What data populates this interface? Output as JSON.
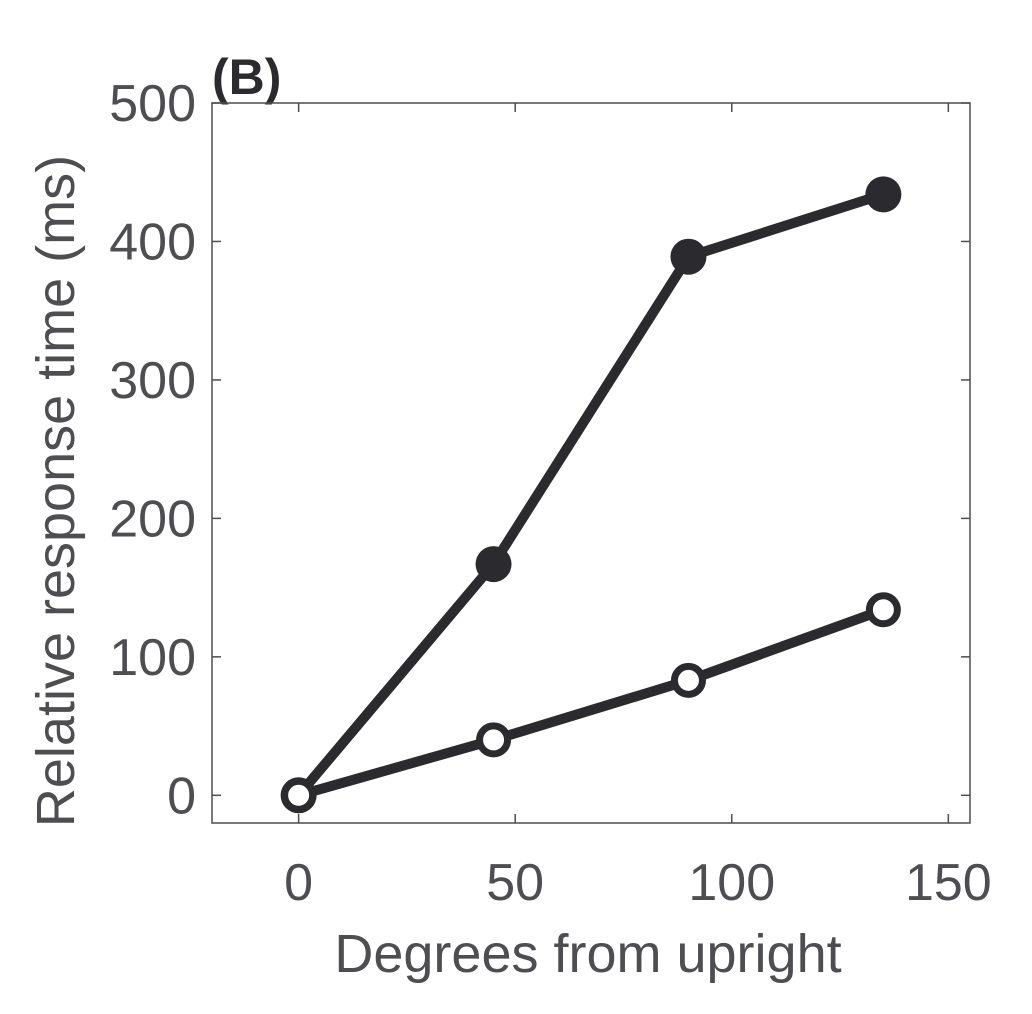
{
  "chart_data": {
    "type": "line",
    "panel_label": "(B)",
    "xlabel": "Degrees from upright",
    "ylabel": "Relative response time (ms)",
    "xlim": [
      -20,
      155
    ],
    "ylim": [
      -20,
      500
    ],
    "xticks": [
      0,
      50,
      100,
      150
    ],
    "yticks": [
      0,
      100,
      200,
      300,
      400,
      500
    ],
    "grid": false,
    "x": [
      0,
      45,
      90,
      135
    ],
    "series": [
      {
        "marker": "filled",
        "color": "#2b2b2f",
        "values": [
          0,
          167,
          389,
          434
        ]
      },
      {
        "marker": "open",
        "color": "#2b2b2f",
        "values": [
          0,
          40,
          83,
          134
        ]
      }
    ]
  }
}
